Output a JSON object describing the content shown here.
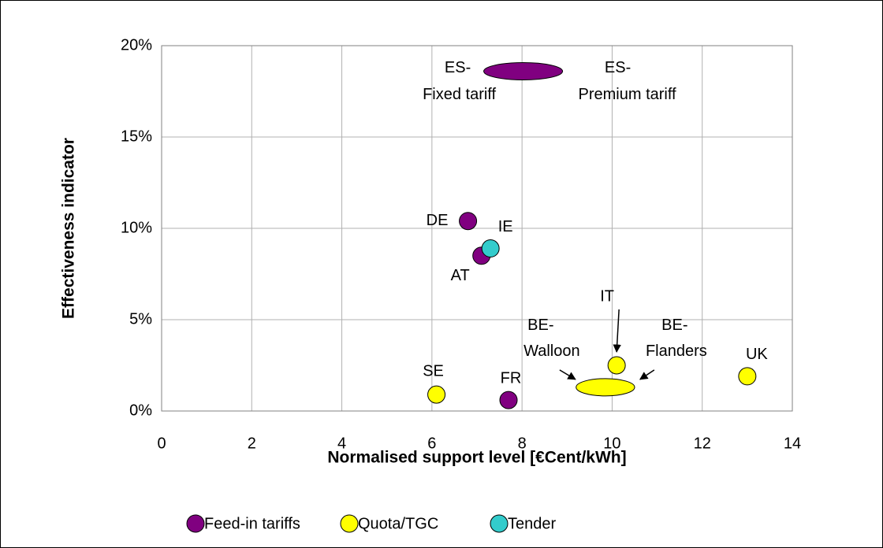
{
  "chart_data": {
    "type": "scatter",
    "x_label": "Normalised support level [€Cent/kWh]",
    "y_label": "Effectiveness indicator",
    "xlim": [
      0,
      14
    ],
    "xticks": [
      0,
      2,
      4,
      6,
      8,
      10,
      12,
      14
    ],
    "ylim": [
      0,
      20
    ],
    "yticks": [
      {
        "value": 0,
        "label": "0%"
      },
      {
        "value": 5,
        "label": "5%"
      },
      {
        "value": 10,
        "label": "10%"
      },
      {
        "value": 15,
        "label": "15%"
      },
      {
        "value": 20,
        "label": "20%"
      }
    ],
    "grid": true,
    "legend": "bottom",
    "series": [
      {
        "name": "Feed-in tariffs",
        "color": "#800080",
        "labels": [
          "DE",
          "AT",
          "FR"
        ],
        "x": [
          6.8,
          7.1,
          7.7
        ],
        "values": [
          10.4,
          8.5,
          0.6
        ]
      },
      {
        "name": "Quota/TGC",
        "color": "#ffff00",
        "labels": [
          "SE",
          "IT",
          "UK"
        ],
        "x": [
          6.1,
          10.1,
          13.0
        ],
        "values": [
          0.9,
          2.5,
          1.9
        ]
      },
      {
        "name": "Tender",
        "color": "#33cccc",
        "labels": [
          "IE"
        ],
        "x": [
          7.3
        ],
        "values": [
          8.9
        ]
      }
    ],
    "ranges": [
      {
        "series": 0,
        "x_min": 7.15,
        "x_max": 8.9,
        "value": 18.6,
        "labels": [
          [
            "ES-",
            "Fixed tariff"
          ],
          [
            "ES-",
            "Premium tariff"
          ]
        ]
      },
      {
        "series": 1,
        "x_min": 9.2,
        "x_max": 10.5,
        "value": 1.3,
        "labels": [
          [
            "BE-",
            "Walloon"
          ],
          [
            "BE-",
            "Flanders"
          ]
        ]
      }
    ]
  }
}
